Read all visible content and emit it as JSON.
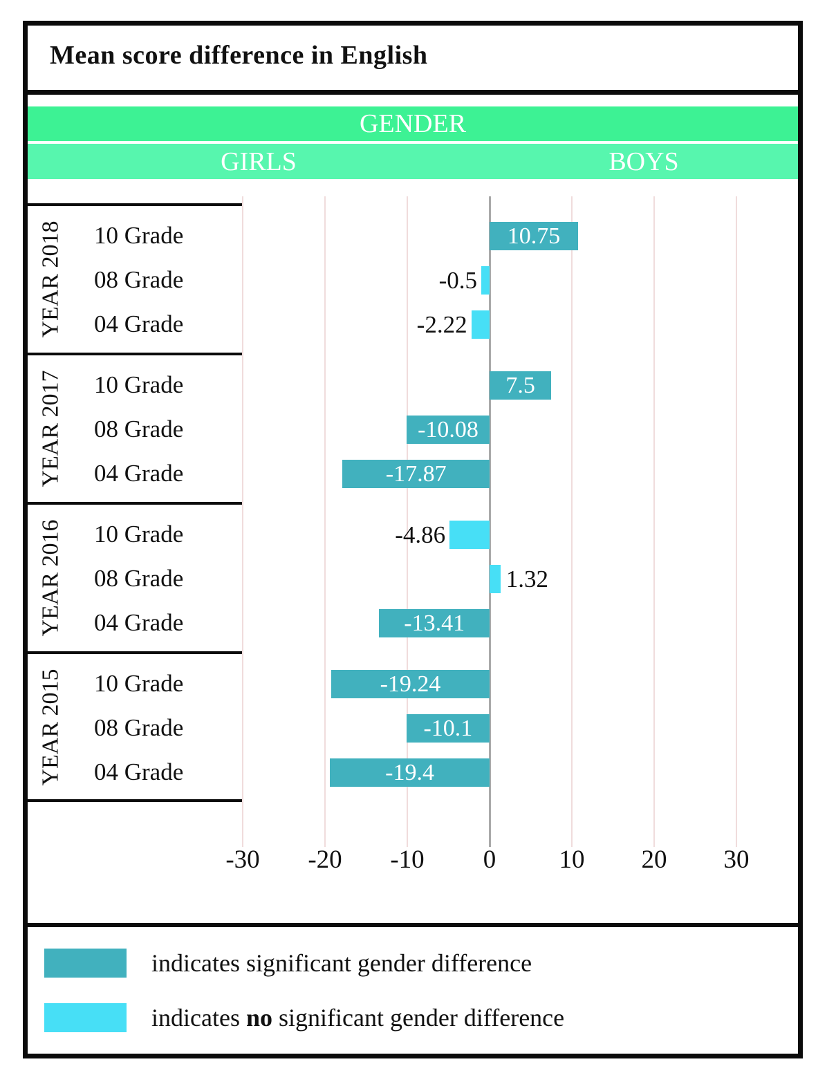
{
  "title": "Mean score difference in English",
  "header": {
    "gender_label": "GENDER",
    "girls_label": "GIRLS",
    "boys_label": "BOYS"
  },
  "chart_data": {
    "type": "bar",
    "orientation": "horizontal",
    "title": "Mean score difference in English",
    "axis": {
      "ticks": [
        -30,
        -20,
        -10,
        0,
        10,
        20,
        30
      ],
      "tick_labels": [
        "-30",
        "-20",
        "-10",
        "0",
        "10",
        "20",
        "30"
      ],
      "range": [
        -30,
        30
      ],
      "grid": true
    },
    "groups": [
      {
        "year": "YEAR 2018",
        "rows": [
          {
            "grade": "10 Grade",
            "value": 10.75,
            "label": "10.75",
            "significant": true
          },
          {
            "grade": "08 Grade",
            "value": -0.5,
            "label": "-0.5",
            "significant": false
          },
          {
            "grade": "04 Grade",
            "value": -2.22,
            "label": "-2.22",
            "significant": false
          }
        ]
      },
      {
        "year": "YEAR 2017",
        "rows": [
          {
            "grade": "10 Grade",
            "value": 7.5,
            "label": "7.5",
            "significant": true
          },
          {
            "grade": "08 Grade",
            "value": -10.08,
            "label": "-10.08",
            "significant": true
          },
          {
            "grade": "04 Grade",
            "value": -17.87,
            "label": "-17.87",
            "significant": true
          }
        ]
      },
      {
        "year": "YEAR 2016",
        "rows": [
          {
            "grade": "10 Grade",
            "value": -4.86,
            "label": "-4.86",
            "significant": false
          },
          {
            "grade": "08 Grade",
            "value": 1.32,
            "label": "1.32",
            "significant": false
          },
          {
            "grade": "04 Grade",
            "value": -13.41,
            "label": "-13.41",
            "significant": true
          }
        ]
      },
      {
        "year": "YEAR 2015",
        "rows": [
          {
            "grade": "10 Grade",
            "value": -19.24,
            "label": "-19.24",
            "significant": true
          },
          {
            "grade": "08 Grade",
            "value": -10.1,
            "label": "-10.1",
            "significant": true
          },
          {
            "grade": "04 Grade",
            "value": -19.4,
            "label": "-19.4",
            "significant": true
          }
        ]
      }
    ],
    "legend_position": "bottom"
  },
  "legend": {
    "significant": {
      "text": "indicates significant gender difference"
    },
    "not_significant": {
      "prefix": "indicates ",
      "bold": "no",
      "suffix": " significant gender difference"
    }
  },
  "colors": {
    "significant_bar": "#41B1BE",
    "not_significant_bar": "#47DFF6",
    "gender_band": "#3DF294",
    "girls_boys_band": "#57F6AE",
    "gridline": "#F0DCDC",
    "zero_line": "#A9A9A9",
    "border": "#0B0B0B"
  }
}
